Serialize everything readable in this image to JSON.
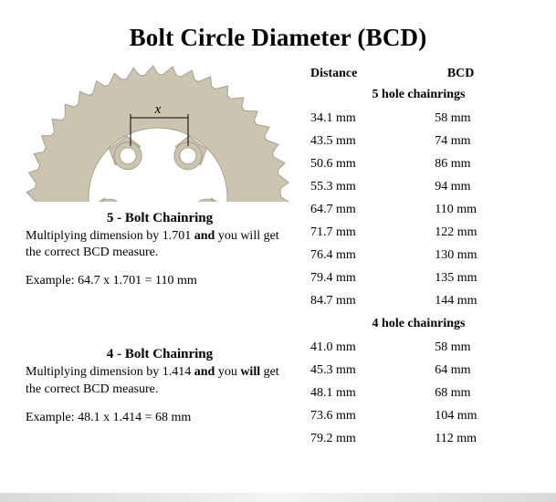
{
  "title": "Bolt Circle Diameter (BCD)",
  "chainring_svg": {
    "fill": "#cbc4b1",
    "stroke": "#a8a08c",
    "dim_label": "x",
    "dim_label_fontstyle": "italic",
    "dim_label_fontsize": 15
  },
  "section_5bolt": {
    "header": "5 - Bolt Chainring",
    "body_1": "Multiplying dimension by 1.701 ",
    "body_and": "and",
    "body_2": " you will get the correct BCD measure.",
    "example": "Example: 64.7 x 1.701 = 110 mm"
  },
  "section_4bolt": {
    "header": "4 - Bolt Chainring",
    "body_1": "Multiplying dimension by 1.414 ",
    "body_and": "and",
    "body_2": " you ",
    "body_will": "will",
    "body_3": " get the correct BCD measure.",
    "example": "Example: 48.1 x 1.414 = 68 mm"
  },
  "table": {
    "headers": {
      "col1": "Distance",
      "col2": "BCD"
    },
    "subheader_5": "5 hole chainrings",
    "rows_5": [
      {
        "d": "34.1 mm",
        "b": "58 mm"
      },
      {
        "d": "43.5 mm",
        "b": "74 mm"
      },
      {
        "d": "50.6 mm",
        "b": "86 mm"
      },
      {
        "d": "55.3 mm",
        "b": "94 mm"
      },
      {
        "d": "64.7 mm",
        "b": "110 mm"
      },
      {
        "d": "71.7 mm",
        "b": "122 mm"
      },
      {
        "d": "76.4 mm",
        "b": "130 mm"
      },
      {
        "d": "79.4 mm",
        "b": "135 mm"
      },
      {
        "d": "84.7 mm",
        "b": "144 mm"
      }
    ],
    "subheader_4": "4 hole chainrings",
    "rows_4": [
      {
        "d": "41.0 mm",
        "b": "58 mm"
      },
      {
        "d": "45.3 mm",
        "b": "64 mm"
      },
      {
        "d": "48.1 mm",
        "b": "68 mm"
      },
      {
        "d": "73.6 mm",
        "b": "104 mm"
      },
      {
        "d": "79.2 mm",
        "b": "112 mm"
      }
    ]
  },
  "colors": {
    "bg": "#ffffff",
    "text": "#000000"
  }
}
